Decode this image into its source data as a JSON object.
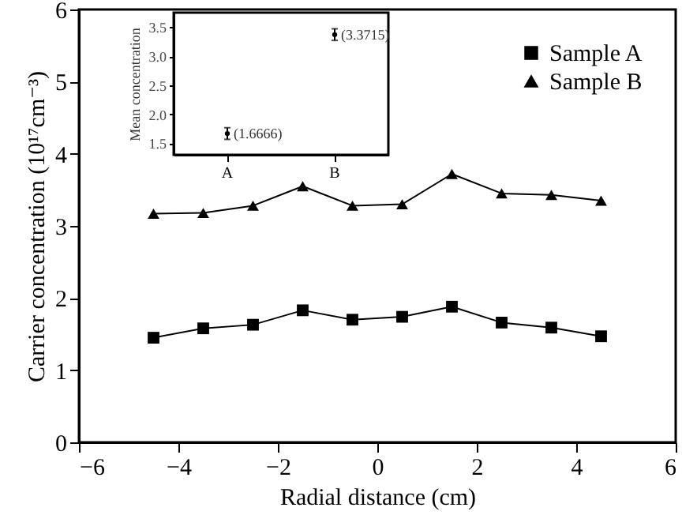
{
  "chart_data": [
    {
      "type": "line",
      "xlabel": "Radial distance (cm)",
      "ylabel": "Carrier concentration (10¹⁷cm⁻³)",
      "x": [
        -4.5,
        -3.5,
        -2.5,
        -1.5,
        -0.5,
        0.5,
        1.5,
        2.5,
        3.5,
        4.5
      ],
      "series": [
        {
          "name": "Sample A",
          "color": "#000000",
          "marker": "square",
          "values": [
            1.45,
            1.58,
            1.63,
            1.83,
            1.7,
            1.74,
            1.88,
            1.66,
            1.59,
            1.47
          ]
        },
        {
          "name": "Sample B",
          "color": "#000000",
          "marker": "triangle",
          "values": [
            3.17,
            3.18,
            3.28,
            3.55,
            3.28,
            3.3,
            3.72,
            3.45,
            3.43,
            3.35
          ]
        }
      ],
      "xlim": [
        -6,
        6
      ],
      "xticks": [
        -6,
        -4,
        -2,
        0,
        2,
        4,
        6
      ],
      "ylim": [
        0,
        6
      ],
      "yticks": [
        0,
        1,
        2,
        3,
        4,
        5,
        6
      ],
      "legend": "top right",
      "grid": false,
      "line_style": "solid"
    },
    {
      "type": "scatter",
      "ylabel": "Mean concentration",
      "categories": [
        "A",
        "B"
      ],
      "values": [
        1.6666,
        3.3715
      ],
      "errors": [
        0.1,
        0.1
      ],
      "color": "#000000",
      "value_labels": [
        "(1.6666)",
        "(3.3715)"
      ],
      "ylim": [
        1.3,
        3.75
      ],
      "yticks": [
        {
          "value": 1.5,
          "label": "1.5"
        },
        {
          "value": 2,
          "label": "2.0"
        },
        {
          "value": 2.5,
          "label": "2.5"
        },
        {
          "value": 3,
          "label": "3.0"
        },
        {
          "value": 3.5,
          "label": "3.5"
        }
      ],
      "marker": "circle",
      "grid": false
    }
  ]
}
